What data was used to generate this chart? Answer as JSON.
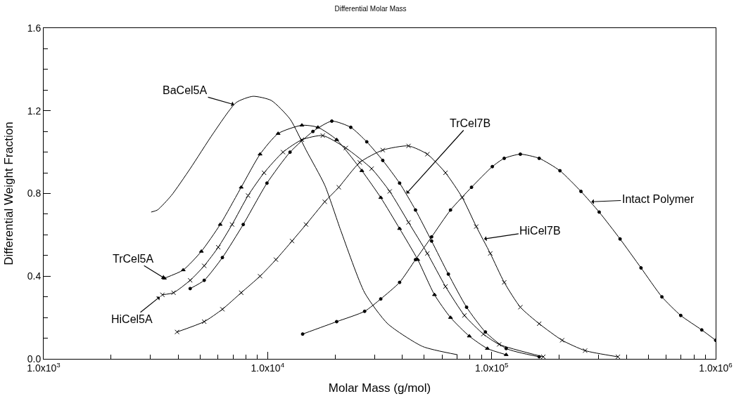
{
  "chart_data": {
    "type": "line",
    "title": "Differential Molar Mass",
    "xlabel": "Molar Mass (g/mol)",
    "ylabel": "Differential Weight Fraction",
    "log": "x",
    "line_style": "solid",
    "xlim": [
      1000,
      1000000
    ],
    "xticks": [
      {
        "value": 1000,
        "label": "1.0x10$^{3}$"
      },
      {
        "value": 10000,
        "label": "1.0x10$^{4}$"
      },
      {
        "value": 100000,
        "label": "1.0x10$^{5}$"
      },
      {
        "value": 1000000,
        "label": "1.0x10$^{6}$"
      }
    ],
    "ylim": [
      0,
      1.6
    ],
    "yticks": [
      {
        "value": 0,
        "label": "0.0"
      },
      0.4,
      0.8,
      1.2,
      1.6
    ],
    "series": [
      {
        "color": "#000000",
        "marker": "none",
        "x": [
          3020,
          3220,
          3715,
          4510,
          5710,
          7240,
          8600,
          10380,
          12590,
          14840,
          17990,
          21220,
          27100,
          34340,
          49170,
          70370
        ],
        "values": [
          0.71,
          0.72,
          0.79,
          0.92,
          1.09,
          1.24,
          1.27,
          1.25,
          1.16,
          1.01,
          0.84,
          0.62,
          0.32,
          0.17,
          0.06,
          0.02
        ]
      },
      {
        "color": "#000000",
        "marker": "triangle",
        "x": [
          3460,
          4200,
          5060,
          6140,
          7620,
          9250,
          11140,
          14220,
          16760,
          20330,
          26340,
          31990,
          38820,
          46770,
          55570,
          65520,
          79460,
          95700,
          116100
        ],
        "values": [
          0.39,
          0.43,
          0.52,
          0.65,
          0.83,
          0.99,
          1.09,
          1.13,
          1.12,
          1.06,
          0.91,
          0.78,
          0.63,
          0.48,
          0.31,
          0.2,
          0.11,
          0.05,
          0.02
        ]
      },
      {
        "color": "#000000",
        "marker": "cross",
        "x": [
          3390,
          3800,
          4510,
          5210,
          6020,
          6940,
          8180,
          9640,
          11710,
          14220,
          17620,
          22340,
          29120,
          35070,
          42560,
          51640,
          62230,
          75620,
          91830,
          108000,
          170000
        ],
        "values": [
          0.31,
          0.32,
          0.38,
          0.45,
          0.54,
          0.65,
          0.79,
          0.9,
          1.0,
          1.06,
          1.08,
          1.02,
          0.92,
          0.81,
          0.66,
          0.51,
          0.35,
          0.21,
          0.12,
          0.07,
          0.01
        ]
      },
      {
        "color": "#000000",
        "marker": "circle",
        "x": [
          4510,
          5210,
          6280,
          7780,
          9930,
          12590,
          15930,
          19340,
          23500,
          27700,
          32650,
          38820,
          45710,
          53950,
          64080,
          77270,
          93760,
          116100,
          163000
        ],
        "values": [
          0.34,
          0.38,
          0.49,
          0.65,
          0.85,
          1.0,
          1.1,
          1.15,
          1.12,
          1.05,
          0.96,
          0.85,
          0.72,
          0.57,
          0.41,
          0.25,
          0.13,
          0.05,
          0.01
        ]
      },
      {
        "color": "#000000",
        "marker": "cross",
        "x": [
          3940,
          5210,
          6280,
          7620,
          9250,
          10890,
          12850,
          14840,
          17990,
          20780,
          25770,
          32650,
          42560,
          51640,
          62230,
          73960,
          85370,
          98610,
          113800,
          134300,
          163000,
          206400,
          261300,
          366200
        ],
        "values": [
          0.13,
          0.18,
          0.24,
          0.32,
          0.4,
          0.48,
          0.57,
          0.65,
          0.76,
          0.83,
          0.95,
          1.01,
          1.03,
          0.99,
          0.9,
          0.78,
          0.64,
          0.51,
          0.37,
          0.25,
          0.17,
          0.09,
          0.04,
          0.01
        ]
      },
      {
        "color": "#000000",
        "marker": "circle",
        "x": [
          14330,
          20330,
          27100,
          31990,
          38820,
          45710,
          53950,
          65520,
          81300,
          100700,
          113800,
          134300,
          163000,
          201800,
          250400,
          302000,
          374300,
          464300,
          575400,
          698400,
          866700,
          1000000
        ],
        "values": [
          0.12,
          0.18,
          0.23,
          0.29,
          0.37,
          0.48,
          0.59,
          0.72,
          0.83,
          0.93,
          0.97,
          0.99,
          0.97,
          0.91,
          0.81,
          0.71,
          0.58,
          0.44,
          0.3,
          0.21,
          0.14,
          0.09
        ]
      }
    ],
    "annotations": [
      {
        "text": "BaCel5A",
        "x": 7080,
        "y": 1.23
      },
      {
        "text": "TrCel5A",
        "x": 3460,
        "y": 0.39
      },
      {
        "text": "HiCel5A",
        "x": 3300,
        "y": 0.3
      },
      {
        "text": "TrCel7B",
        "x": 41700,
        "y": 0.8
      },
      {
        "text": "HiCel7B",
        "x": 92500,
        "y": 0.58
      },
      {
        "text": "Intact Polymer",
        "x": 278600,
        "y": 0.76
      }
    ]
  }
}
